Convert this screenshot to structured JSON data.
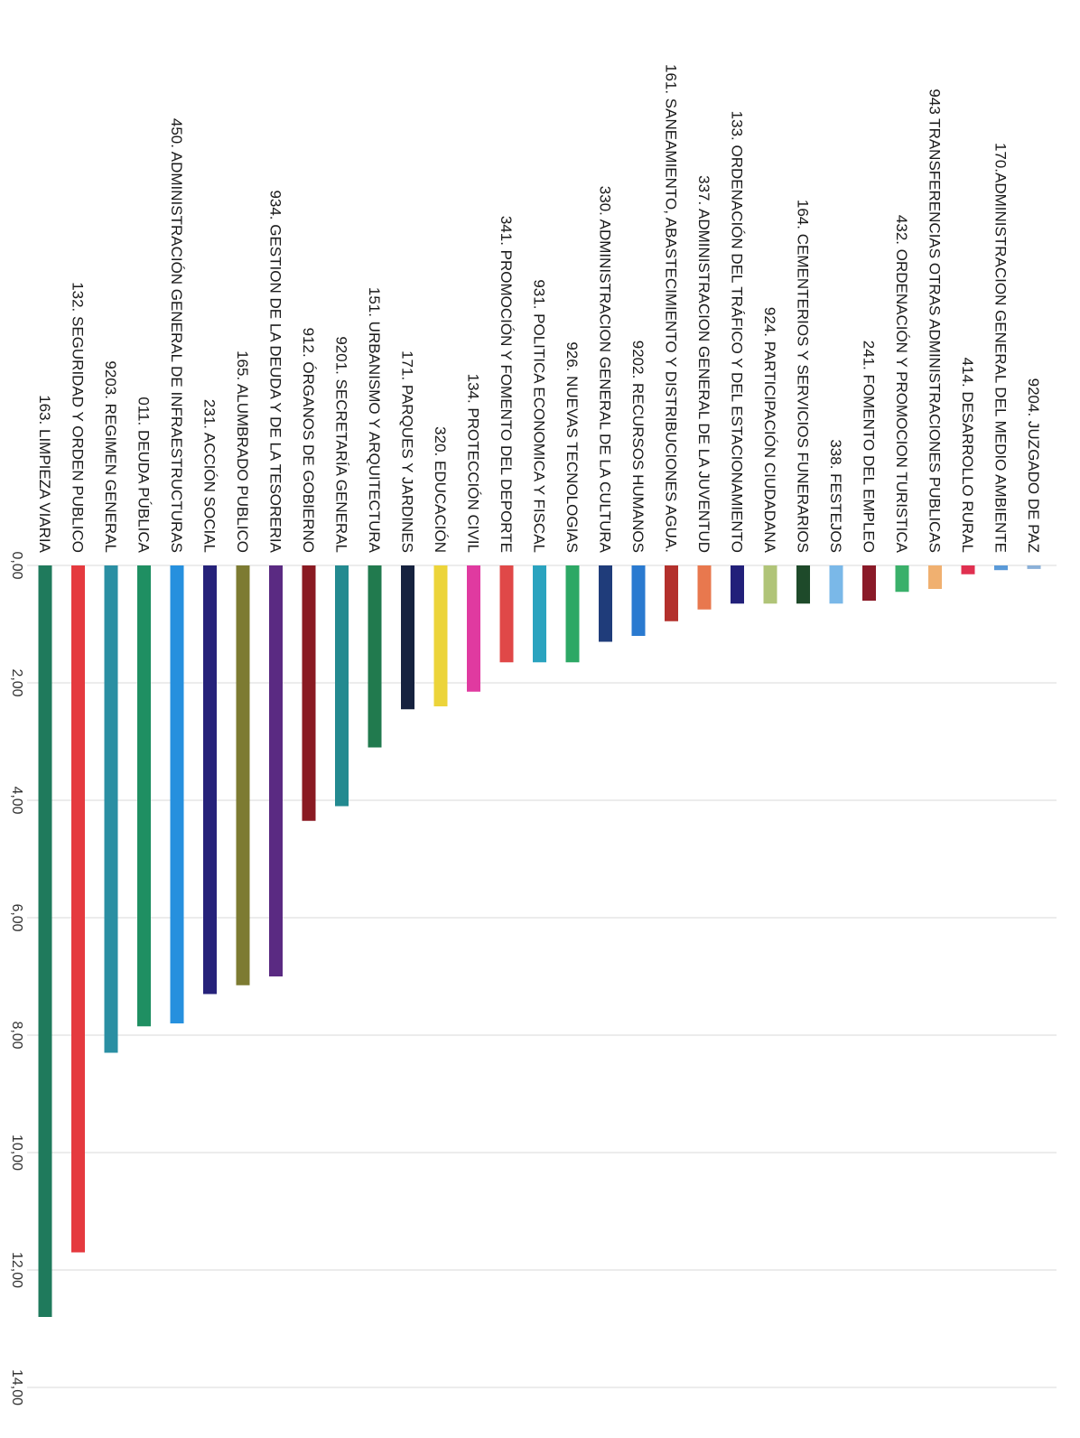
{
  "chart_data": {
    "type": "bar",
    "orientation": "horizontal-value-axis (page rotated 90° clockwise)",
    "grid": true,
    "ylim": [
      0,
      14
    ],
    "tick_labels": [
      "0,00",
      "2,00",
      "4,00",
      "6,00",
      "8,00",
      "10,00",
      "12,00",
      "14,00"
    ],
    "categories": [
      "163. LIMPIEZA VIARIA",
      "132. SEGURIDAD Y ORDEN PUBLICO",
      "9203. REGIMEN GENERAL",
      "011. DEUDA PÚBLICA",
      "450. ADMINISTRACIÓN GENERAL DE INFRAESTRUCTURAS",
      "231. ACCIÓN SOCIAL",
      "165. ALUMBRADO PUBLICO",
      "934. GESTION DE LA DEUDA Y DE LA TESORERIA",
      "912. ÓRGANOS DE GOBIERNO",
      "9201. SECRETARÍA GENERAL",
      "151. URBANISMO Y ARQUITECTURA",
      "171. PARQUES Y JARDINES",
      "320. EDUCACIÓN",
      "134. PROTECCIÓN CIVIL",
      "341. PROMOCIÓN Y FOMENTO DEL DEPORTE",
      "931. POLITICA ECONOMICA Y FISCAL",
      "926. NUEVAS TECNOLOGIAS",
      "330. ADMINISTRACION GENERAL DE LA CULTURA",
      "9202. RECURSOS HUMANOS",
      "161. SANEAMIENTO, ABASTECIMIENTO Y DISTRIBUCIONES AGUA.",
      "337. ADMINISTRACION GENERAL DE LA JUVENTUD",
      "133. ORDENACIÓN DEL TRÁFICO Y DEL ESTACIONAMIENTO",
      "924. PARTICIPACIÓN CIUDADANA",
      "164. CEMENTERIOS Y SERVICIOS FUNERARIOS",
      "338. FESTEJOS",
      "241. FOMENTO DEL EMPLEO",
      "432. ORDENACIÓN Y PROMOCION TURISTICA",
      "943 TRANSFERENCIAS OTRAS ADMINISTRACIONES PUBLICAS",
      "414. DESARROLLO RURAL",
      "170.ADMINISTRACION GENERAL DEL MEDIO AMBIENTE",
      "9204. JUZGADO DE PAZ"
    ],
    "values": [
      12.8,
      11.7,
      8.3,
      7.85,
      7.8,
      7.3,
      7.15,
      7.0,
      4.35,
      4.1,
      3.1,
      2.45,
      2.4,
      2.15,
      1.65,
      1.65,
      1.65,
      1.3,
      1.2,
      0.95,
      0.75,
      0.65,
      0.65,
      0.65,
      0.65,
      0.6,
      0.45,
      0.4,
      0.15,
      0.08,
      0.06
    ],
    "colors": [
      "#1f7a5c",
      "#e53a3f",
      "#2a8fa3",
      "#1f8f62",
      "#2690de",
      "#26227a",
      "#7d7b32",
      "#5a2a82",
      "#8a1a22",
      "#238a90",
      "#217a4e",
      "#16223f",
      "#ecd43a",
      "#e03aa0",
      "#e04848",
      "#2aa3bf",
      "#2da865",
      "#1f3c7a",
      "#2a7ad0",
      "#b3302c",
      "#e8784e",
      "#22207a",
      "#b0c478",
      "#1e4a2a",
      "#7ab8e8",
      "#8a1a28",
      "#3ab06a",
      "#f0b070",
      "#e03050",
      "#5a9ad8",
      "#8ab0d8"
    ]
  }
}
